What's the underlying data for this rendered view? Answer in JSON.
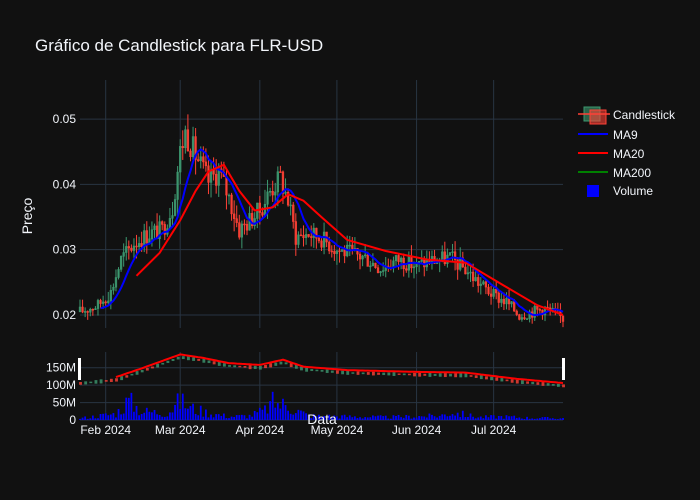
{
  "chart_data": {
    "type": "candlestick",
    "title": "Gráfico de Candlestick para FLR-USD",
    "ylabel": "Preço",
    "xlabel": "Data",
    "date_range": [
      "2024-01-22",
      "2024-07-28"
    ],
    "price_ylim": [
      0.018,
      0.056
    ],
    "price_yticks": [
      "0.02",
      "0.03",
      "0.04",
      "0.05"
    ],
    "price_ytick_values": [
      0.02,
      0.03,
      0.04,
      0.05
    ],
    "volume_ylim": [
      0,
      195
    ],
    "volume_yticks": [
      "0",
      "50M",
      "100M",
      "150M"
    ],
    "volume_ytick_values": [
      0,
      50,
      100,
      150
    ],
    "xticks": [
      "Feb 2024",
      "Mar 2024",
      "Apr 2024",
      "May 2024",
      "Jun 2024",
      "Jul 2024"
    ],
    "xtick_dates": [
      "2024-02-01",
      "2024-03-01",
      "2024-04-01",
      "2024-05-01",
      "2024-06-01",
      "2024-07-01"
    ],
    "legend": [
      "Candlestick",
      "MA9",
      "MA20",
      "MA200",
      "Volume"
    ],
    "colors": {
      "increasing": "#3d9970",
      "decreasing": "#ff4136",
      "ma9": "#0000ff",
      "ma20": "#ff0000",
      "ma200": "#008000",
      "volume": "#0000ff",
      "grid": "#283442",
      "background": "#111111"
    },
    "price_anchors": [
      [
        "2024-01-22",
        0.0205
      ],
      [
        "2024-01-29",
        0.0215
      ],
      [
        "2024-02-03",
        0.0235
      ],
      [
        "2024-02-07",
        0.0285
      ],
      [
        "2024-02-12",
        0.031
      ],
      [
        "2024-02-18",
        0.0325
      ],
      [
        "2024-02-23",
        0.033
      ],
      [
        "2024-02-27",
        0.0365
      ],
      [
        "2024-03-01",
        0.045
      ],
      [
        "2024-03-03",
        0.048
      ],
      [
        "2024-03-07",
        0.0445
      ],
      [
        "2024-03-12",
        0.0405
      ],
      [
        "2024-03-16",
        0.042
      ],
      [
        "2024-03-20",
        0.038
      ],
      [
        "2024-03-24",
        0.033
      ],
      [
        "2024-03-28",
        0.0345
      ],
      [
        "2024-04-01",
        0.036
      ],
      [
        "2024-04-05",
        0.039
      ],
      [
        "2024-04-09",
        0.041
      ],
      [
        "2024-04-12",
        0.0375
      ],
      [
        "2024-04-15",
        0.032
      ],
      [
        "2024-04-20",
        0.0325
      ],
      [
        "2024-04-25",
        0.0318
      ],
      [
        "2024-05-01",
        0.03
      ],
      [
        "2024-05-06",
        0.0295
      ],
      [
        "2024-05-12",
        0.0288
      ],
      [
        "2024-05-18",
        0.0272
      ],
      [
        "2024-05-25",
        0.0285
      ],
      [
        "2024-06-01",
        0.0275
      ],
      [
        "2024-06-06",
        0.0283
      ],
      [
        "2024-06-10",
        0.0285
      ],
      [
        "2024-06-14",
        0.0288
      ],
      [
        "2024-06-20",
        0.027
      ],
      [
        "2024-06-25",
        0.025
      ],
      [
        "2024-07-01",
        0.023
      ],
      [
        "2024-07-06",
        0.022
      ],
      [
        "2024-07-11",
        0.02
      ],
      [
        "2024-07-16",
        0.0205
      ],
      [
        "2024-07-21",
        0.021
      ],
      [
        "2024-07-28",
        0.0195
      ]
    ],
    "ma20_anchors": [
      [
        "2024-02-13",
        0.026
      ],
      [
        "2024-02-22",
        0.0295
      ],
      [
        "2024-03-01",
        0.0345
      ],
      [
        "2024-03-07",
        0.039
      ],
      [
        "2024-03-12",
        0.042
      ],
      [
        "2024-03-18",
        0.043
      ],
      [
        "2024-03-24",
        0.039
      ],
      [
        "2024-03-30",
        0.036
      ],
      [
        "2024-04-06",
        0.0365
      ],
      [
        "2024-04-12",
        0.0385
      ],
      [
        "2024-04-18",
        0.0375
      ],
      [
        "2024-04-25",
        0.035
      ],
      [
        "2024-05-05",
        0.0315
      ],
      [
        "2024-05-20",
        0.0298
      ],
      [
        "2024-06-05",
        0.0285
      ],
      [
        "2024-06-20",
        0.028
      ],
      [
        "2024-07-05",
        0.0245
      ],
      [
        "2024-07-18",
        0.0215
      ],
      [
        "2024-07-28",
        0.02
      ]
    ],
    "volume_anchors": [
      [
        "2024-01-22",
        5
      ],
      [
        "2024-02-05",
        18
      ],
      [
        "2024-02-10",
        55
      ],
      [
        "2024-02-15",
        25
      ],
      [
        "2024-02-25",
        20
      ],
      [
        "2024-03-01",
        55
      ],
      [
        "2024-03-05",
        35
      ],
      [
        "2024-03-12",
        20
      ],
      [
        "2024-03-20",
        10
      ],
      [
        "2024-03-28",
        12
      ],
      [
        "2024-04-03",
        28
      ],
      [
        "2024-04-06",
        50
      ],
      [
        "2024-04-12",
        40
      ],
      [
        "2024-04-20",
        12
      ],
      [
        "2024-05-05",
        10
      ],
      [
        "2024-05-20",
        8
      ],
      [
        "2024-06-10",
        12
      ],
      [
        "2024-06-15",
        22
      ],
      [
        "2024-06-25",
        8
      ],
      [
        "2024-07-05",
        10
      ],
      [
        "2024-07-15",
        6
      ],
      [
        "2024-07-28",
        5
      ]
    ],
    "volume_overlay_anchors": [
      [
        "2024-01-22",
        105
      ],
      [
        "2024-02-05",
        115
      ],
      [
        "2024-02-15",
        140
      ],
      [
        "2024-03-01",
        180
      ],
      [
        "2024-03-10",
        170
      ],
      [
        "2024-03-20",
        155
      ],
      [
        "2024-04-01",
        150
      ],
      [
        "2024-04-10",
        165
      ],
      [
        "2024-04-18",
        145
      ],
      [
        "2024-05-05",
        135
      ],
      [
        "2024-06-01",
        130
      ],
      [
        "2024-06-20",
        128
      ],
      [
        "2024-07-10",
        110
      ],
      [
        "2024-07-28",
        98
      ]
    ]
  }
}
